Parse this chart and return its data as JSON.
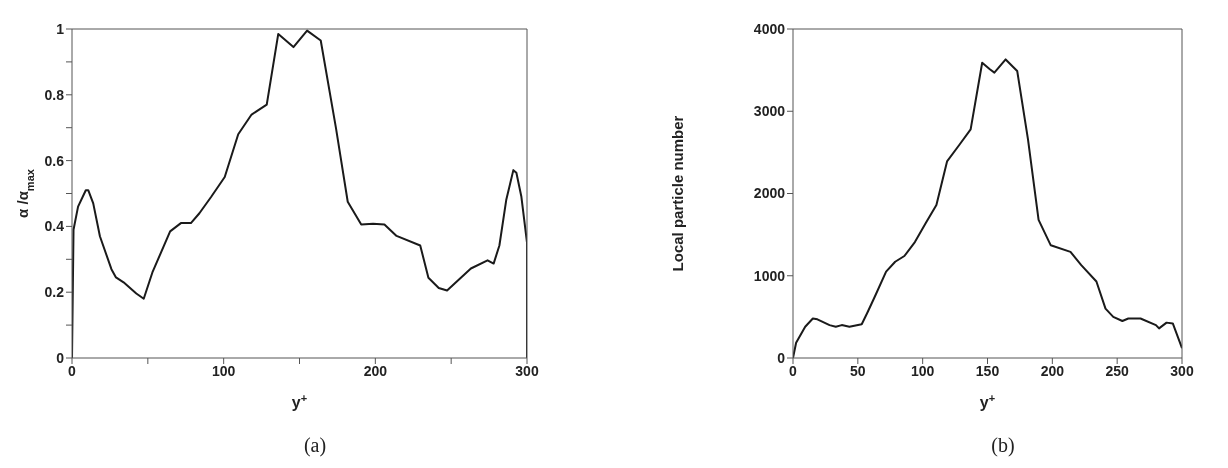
{
  "chart_data": [
    {
      "type": "line",
      "xlabel": "y$^{+}$",
      "ylabel": "α /α$_{max}$",
      "annotations": [
        "(a)"
      ],
      "x": [
        0,
        1,
        4,
        9.1,
        10.7,
        14,
        18.4,
        26,
        29,
        34,
        42.4,
        47.3,
        53,
        64.7,
        71.8,
        78.4,
        84,
        91.8,
        100.7,
        109.6,
        118.4,
        128.4,
        136,
        146,
        155,
        164,
        174,
        181.8,
        190.7,
        198.5,
        206,
        214,
        229.6,
        235,
        241.8,
        247.3,
        263,
        274,
        278,
        281.8,
        286.3,
        291,
        293,
        296.3,
        300,
        300
      ],
      "series": [
        {
          "color": "#1a1a1a",
          "values": [
            0,
            0.39,
            0.46,
            0.51,
            0.51,
            0.47,
            0.37,
            0.27,
            0.245,
            0.23,
            0.196,
            0.18,
            0.26,
            0.385,
            0.41,
            0.41,
            0.44,
            0.49,
            0.55,
            0.68,
            0.74,
            0.77,
            0.985,
            0.945,
            0.995,
            0.965,
            0.7,
            0.475,
            0.406,
            0.408,
            0.406,
            0.371,
            0.342,
            0.244,
            0.213,
            0.205,
            0.272,
            0.297,
            0.287,
            0.342,
            0.48,
            0.571,
            0.563,
            0.49,
            0.351,
            0
          ]
        }
      ],
      "xlim": [
        0,
        300
      ],
      "xticks": [
        0,
        {
          "value": 50,
          "label": null
        },
        100,
        {
          "value": 150,
          "label": null
        },
        200,
        {
          "value": 250,
          "label": null
        },
        300
      ],
      "ylim": [
        0,
        1
      ],
      "yticks": [
        0,
        {
          "value": 0.1,
          "label": null
        },
        0.2,
        {
          "value": 0.3,
          "label": null
        },
        0.4,
        {
          "value": 0.5,
          "label": null
        },
        0.6,
        {
          "value": 0.7,
          "label": null
        },
        0.8,
        {
          "value": 0.9,
          "label": null
        },
        1
      ],
      "grid": false,
      "legend": false,
      "marker": "none",
      "line_style": "solid"
    },
    {
      "type": "line",
      "xlabel": "y$^{+}$",
      "ylabel": "Local particle number",
      "annotations": [
        "(b)"
      ],
      "x": [
        0,
        2.4,
        9.4,
        15.3,
        18.8,
        28.2,
        33,
        37.6,
        43.5,
        53,
        57.6,
        63.5,
        71.8,
        78.8,
        85.9,
        94,
        102.4,
        110.6,
        118.8,
        128.2,
        137,
        145.9,
        151.8,
        155.3,
        164,
        172.9,
        181.2,
        189.4,
        198.8,
        214,
        222.3,
        234,
        241,
        247,
        254,
        258.6,
        268,
        279.9,
        282.3,
        288.1,
        292.9,
        300
      ],
      "series": [
        {
          "color": "#1a1a1a",
          "values": [
            0,
            185,
            380,
            480,
            470,
            400,
            380,
            400,
            380,
            410,
            560,
            760,
            1050,
            1170,
            1240,
            1410,
            1640,
            1860,
            2390,
            2590,
            2780,
            3590,
            3510,
            3470,
            3630,
            3490,
            2660,
            1680,
            1370,
            1290,
            1130,
            930,
            600,
            500,
            450,
            480,
            480,
            400,
            360,
            430,
            420,
            120
          ]
        }
      ],
      "xlim": [
        0,
        300
      ],
      "xticks": [
        0,
        50,
        100,
        150,
        200,
        250,
        300
      ],
      "ylim": [
        0,
        4000
      ],
      "yticks": [
        0,
        1000,
        2000,
        3000,
        4000
      ],
      "grid": false,
      "legend": false,
      "marker": "none",
      "line_style": "solid"
    }
  ]
}
